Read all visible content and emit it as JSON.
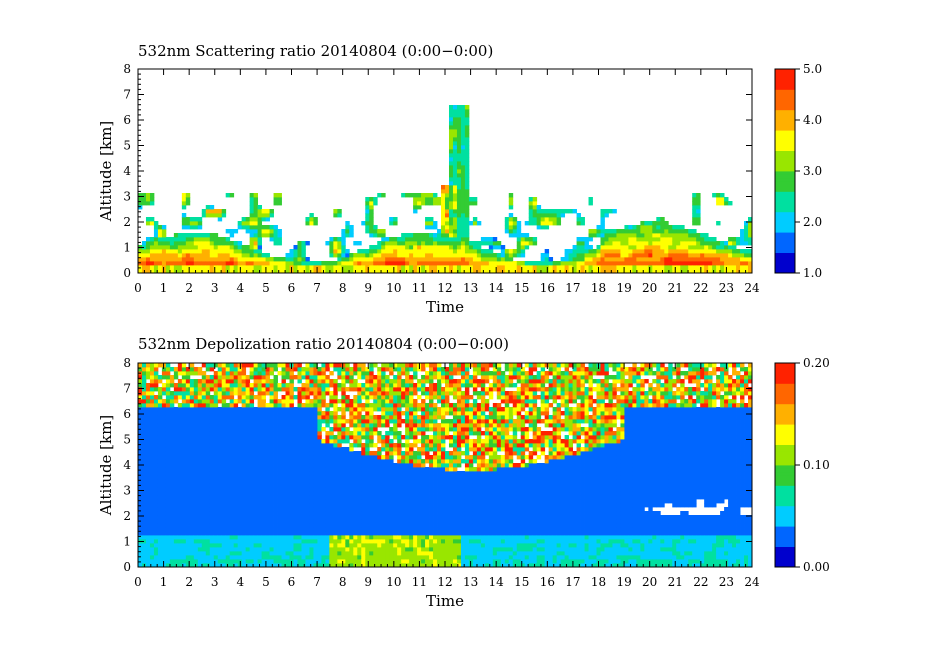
{
  "chart_data": [
    {
      "type": "heatmap",
      "title": "532nm Scattering ratio  20140804 (0:00−0:00)",
      "xlabel": "Time",
      "ylabel": "Altitude [km]",
      "xlim": [
        0,
        24
      ],
      "ylim": [
        0,
        8
      ],
      "x_ticks": [
        "0",
        "1",
        "2",
        "3",
        "4",
        "5",
        "6",
        "7",
        "8",
        "9",
        "10",
        "11",
        "12",
        "13",
        "14",
        "15",
        "16",
        "17",
        "18",
        "19",
        "20",
        "21",
        "22",
        "23",
        "24"
      ],
      "y_ticks": [
        "0",
        "1",
        "2",
        "3",
        "4",
        "5",
        "6",
        "7",
        "8"
      ],
      "colorbar": {
        "min": 1.0,
        "max": 5.0,
        "ticks": [
          "1.0",
          "2.0",
          "3.0",
          "4.0",
          "5.0"
        ]
      },
      "colormap": [
        "#0000cd",
        "#0066ff",
        "#00ccff",
        "#00e0a0",
        "#33cc33",
        "#99e600",
        "#ffff00",
        "#ffb000",
        "#ff6600",
        "#ff2200"
      ],
      "grid": false
    },
    {
      "type": "heatmap",
      "title": "532nm Depolization ratio  20140804 (0:00−0:00)",
      "xlabel": "Time",
      "ylabel": "Altitude [km]",
      "xlim": [
        0,
        24
      ],
      "ylim": [
        0,
        8
      ],
      "x_ticks": [
        "0",
        "1",
        "2",
        "3",
        "4",
        "5",
        "6",
        "7",
        "8",
        "9",
        "10",
        "11",
        "12",
        "13",
        "14",
        "15",
        "16",
        "17",
        "18",
        "19",
        "20",
        "21",
        "22",
        "23",
        "24"
      ],
      "y_ticks": [
        "0",
        "1",
        "2",
        "3",
        "4",
        "5",
        "6",
        "7",
        "8"
      ],
      "colorbar": {
        "min": 0.0,
        "max": 0.2,
        "ticks": [
          "0.00",
          "0.10",
          "0.20"
        ]
      },
      "colormap": [
        "#0000cd",
        "#0066ff",
        "#00ccff",
        "#00e0a0",
        "#33cc33",
        "#99e600",
        "#ffff00",
        "#ffb000",
        "#ff6600",
        "#ff2200"
      ],
      "grid": false
    }
  ]
}
